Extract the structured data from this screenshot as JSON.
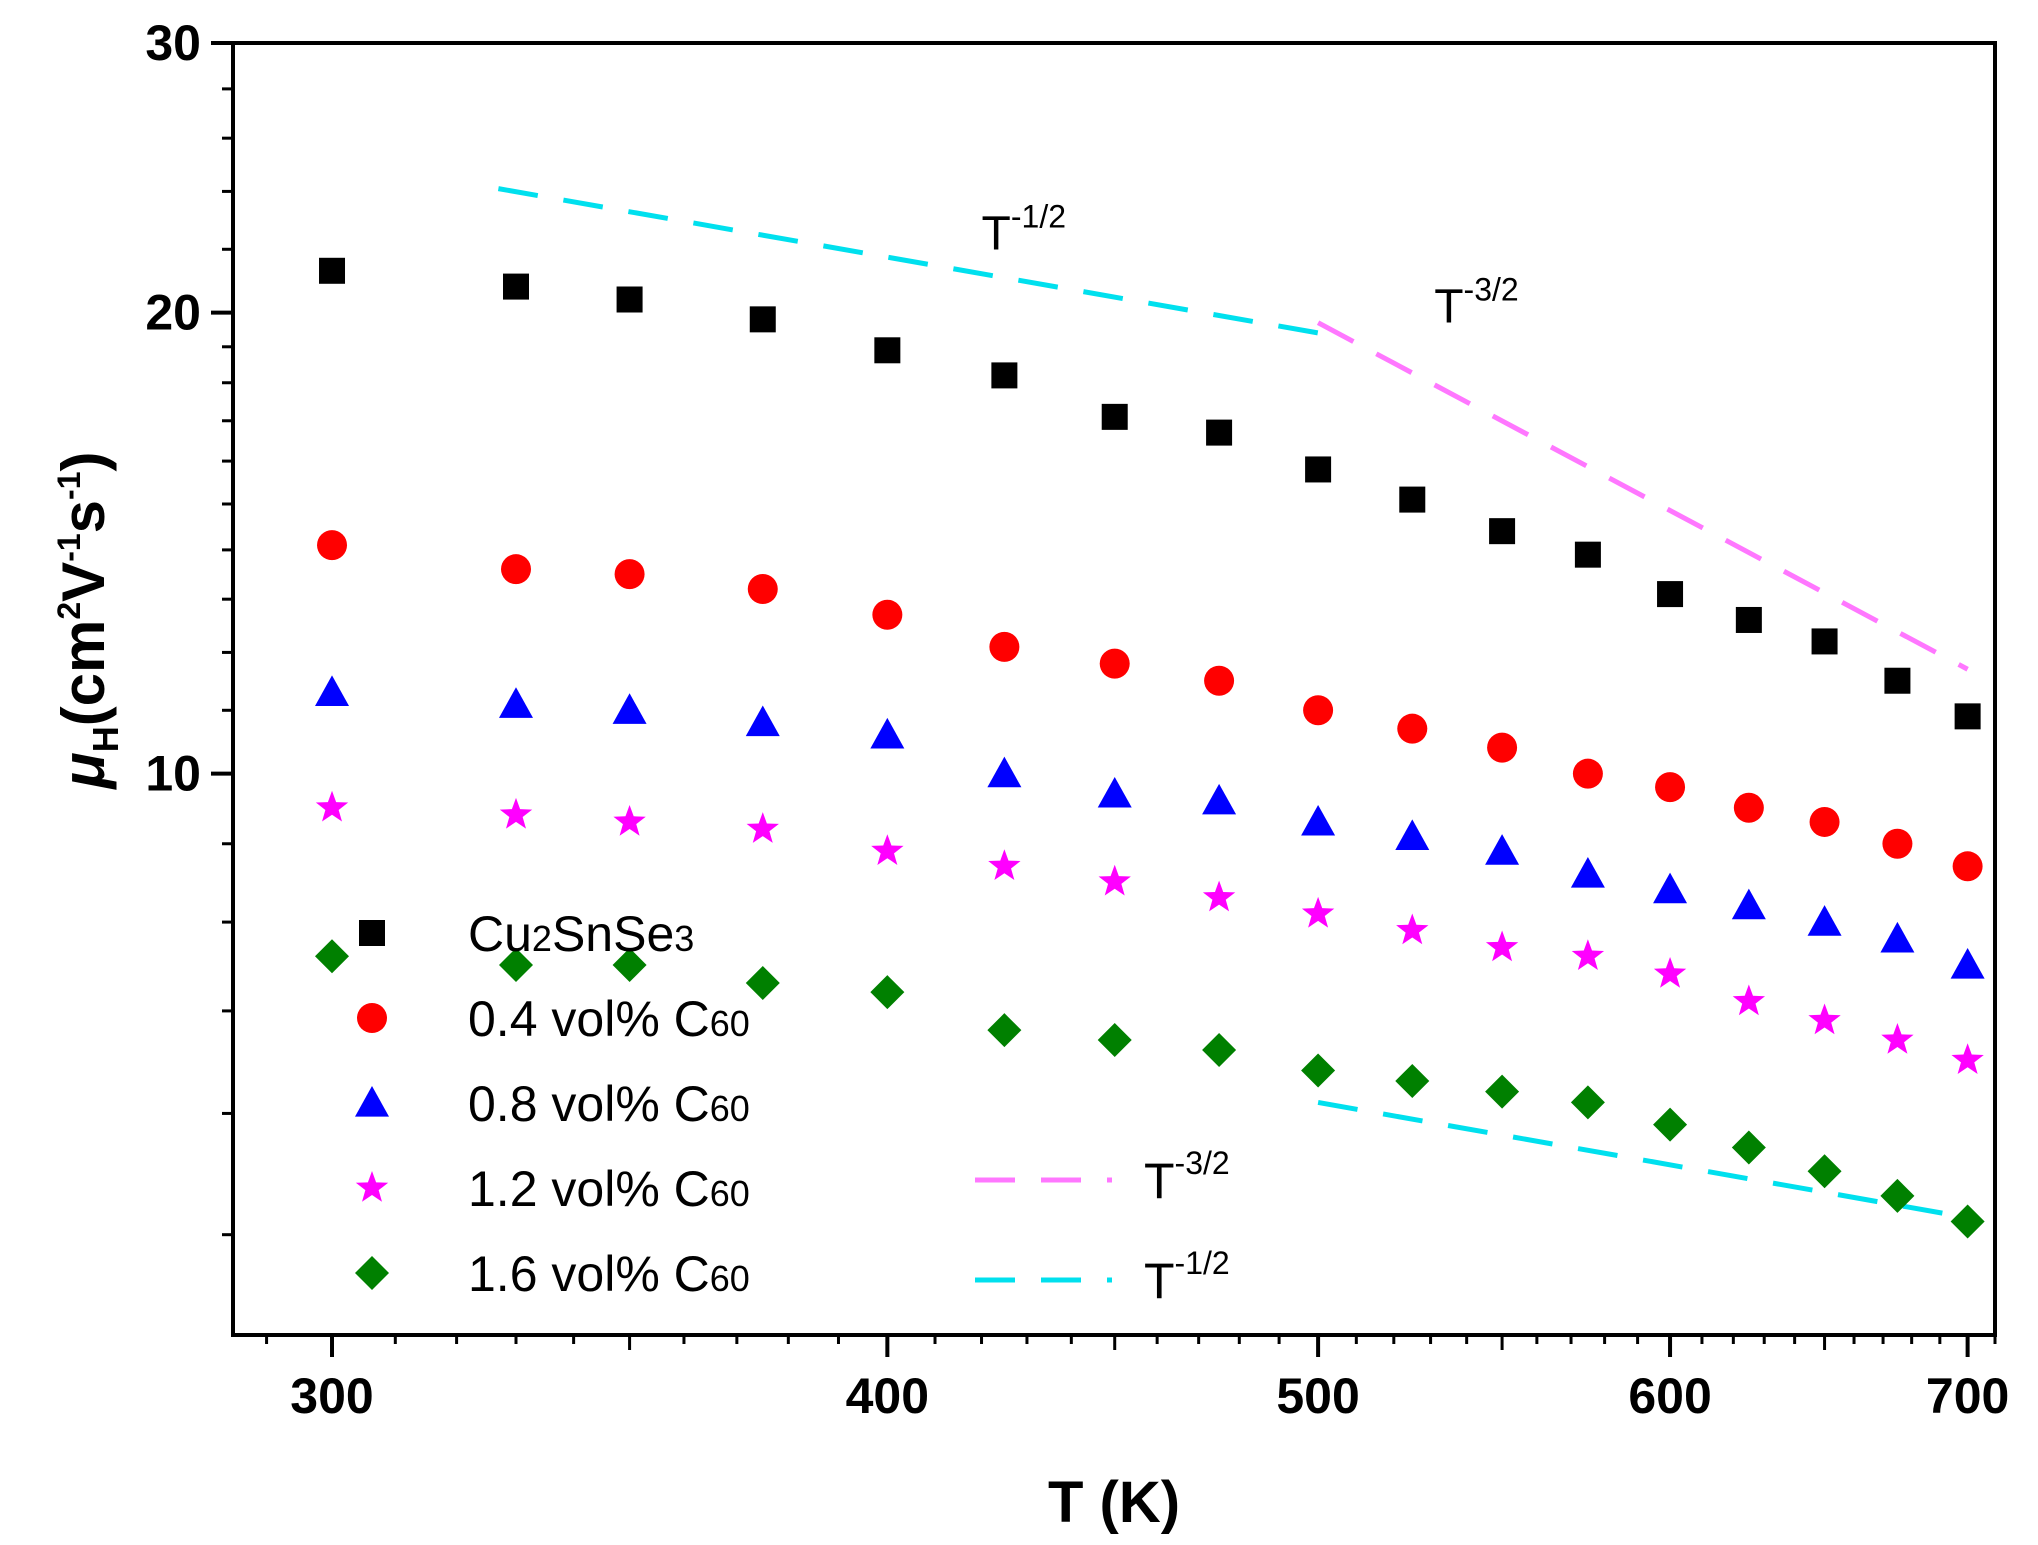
{
  "chart_data": {
    "type": "scatter",
    "title": "",
    "xlabel": "T (K)",
    "ylabel": {
      "symbol": "μ",
      "subscript": "H",
      "units_open": "(cm",
      "sup1": "2",
      "mid": "V",
      "sup2": "-1",
      "s": "s",
      "sup3": "-1",
      "close": ")"
    },
    "xscale": "log",
    "yscale": "log",
    "xlim": [
      285,
      710
    ],
    "ylim": [
      4.3,
      30
    ],
    "xticks": [
      300,
      400,
      500,
      600,
      700
    ],
    "xtick_labels": [
      "300",
      "400",
      "500",
      "600",
      "700"
    ],
    "yticks": [
      10,
      20,
      30
    ],
    "ytick_labels": [
      "10",
      "20",
      "30"
    ],
    "x": [
      300,
      330,
      350,
      375,
      400,
      425,
      450,
      475,
      500,
      525,
      550,
      575,
      600,
      625,
      650,
      675,
      700
    ],
    "series": [
      {
        "name": "Cu2SnSe3",
        "name_parts": {
          "a": "Cu",
          "b": "2",
          "c": "SnSe",
          "d": "3"
        },
        "marker": "square",
        "color": "#000000",
        "values": [
          21.3,
          20.8,
          20.4,
          19.8,
          18.9,
          18.2,
          17.1,
          16.7,
          15.8,
          15.1,
          14.4,
          13.9,
          13.1,
          12.6,
          12.2,
          11.5,
          10.9
        ]
      },
      {
        "name": "0.4 vol% C60",
        "name_parts": {
          "a": "0.4 vol% C",
          "b": "60"
        },
        "marker": "circle",
        "color": "#ff0000",
        "values": [
          14.1,
          13.6,
          13.5,
          13.2,
          12.7,
          12.1,
          11.8,
          11.5,
          11.0,
          10.7,
          10.4,
          10.0,
          9.8,
          9.5,
          9.3,
          9.0,
          8.7
        ]
      },
      {
        "name": "0.8 vol% C60",
        "name_parts": {
          "a": "0.8 vol% C",
          "b": "60"
        },
        "marker": "triangle",
        "color": "#0000ff",
        "values": [
          11.3,
          11.1,
          11.0,
          10.8,
          10.6,
          10.0,
          9.7,
          9.6,
          9.3,
          9.1,
          8.9,
          8.6,
          8.4,
          8.2,
          8.0,
          7.8,
          7.5
        ]
      },
      {
        "name": "1.2 vol% C60",
        "name_parts": {
          "a": "1.2 vol% C",
          "b": "60"
        },
        "marker": "star",
        "color": "#ff00ff",
        "values": [
          9.5,
          9.4,
          9.3,
          9.2,
          8.9,
          8.7,
          8.5,
          8.3,
          8.1,
          7.9,
          7.7,
          7.6,
          7.4,
          7.1,
          6.9,
          6.7,
          6.5
        ]
      },
      {
        "name": "1.6 vol% C60",
        "name_parts": {
          "a": "1.6 vol% C",
          "b": "60"
        },
        "marker": "diamond",
        "color": "#008000",
        "values": [
          7.6,
          7.5,
          7.5,
          7.3,
          7.2,
          6.8,
          6.7,
          6.6,
          6.4,
          6.3,
          6.2,
          6.1,
          5.9,
          5.7,
          5.5,
          5.3,
          5.1
        ]
      }
    ],
    "guides": [
      {
        "name": "T-1/2 upper",
        "label_base": "T",
        "label_exp": "-1/2",
        "color": "#00e0ee",
        "x": [
          327,
          500
        ],
        "y": [
          24.1,
          19.4
        ]
      },
      {
        "name": "T-3/2",
        "label_base": "T",
        "label_exp": "-3/2",
        "color": "#ff77ff",
        "x": [
          500,
          700
        ],
        "y": [
          19.7,
          11.7
        ]
      },
      {
        "name": "T-1/2 lower",
        "label_base": "T",
        "label_exp": "-1/2",
        "color": "#00e0ee",
        "x": [
          500,
          700
        ],
        "y": [
          6.1,
          5.13
        ]
      }
    ],
    "annotations": [
      {
        "base": "T",
        "exp": "-1/2",
        "x": 420,
        "y": 22.0
      },
      {
        "base": "T",
        "exp": "-3/2",
        "x": 531,
        "y": 19.7
      }
    ],
    "legend_position": "bottom-left",
    "guide_legend": [
      {
        "base": "T",
        "exp": "-3/2",
        "color": "#ff77ff"
      },
      {
        "base": "T",
        "exp": "-1/2",
        "color": "#00e0ee"
      }
    ]
  }
}
